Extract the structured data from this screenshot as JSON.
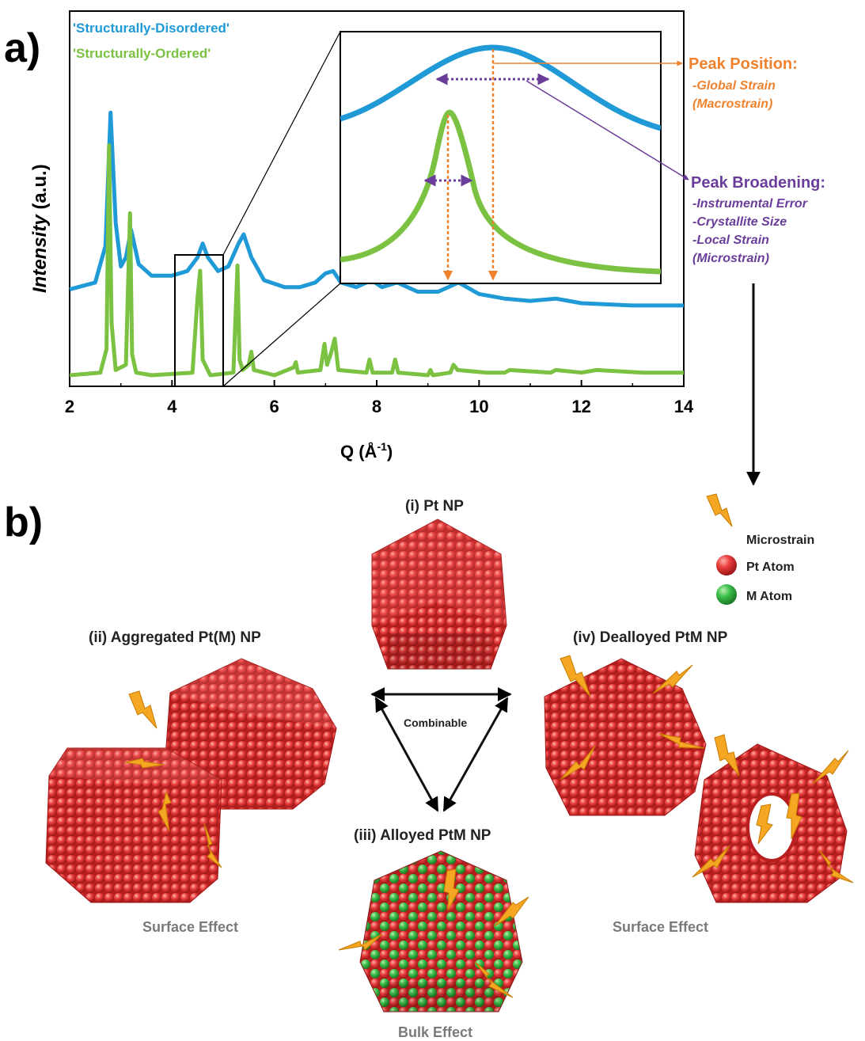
{
  "panel_a": {
    "label": "a)",
    "legend": [
      "'Structurally-Disordered'",
      "'Structurally-Ordered'"
    ],
    "ylabel": {
      "italic": "Intensity",
      "rest": " (a.u.)"
    },
    "xlabel": {
      "main": "Q (Å",
      "sup": "-1",
      "close": ")"
    },
    "xticks": [
      "2",
      "4",
      "6",
      "8",
      "10",
      "12",
      "14"
    ],
    "annotation_position": {
      "title": "Peak Position:",
      "lines": [
        "-Global Strain",
        "(Macrostrain)"
      ]
    },
    "annotation_broadening": {
      "title": "Peak Broadening:",
      "lines": [
        "-Instrumental Error",
        "-Crystallite Size",
        "-Local Strain",
        "(Microstrain)"
      ]
    }
  },
  "panel_b": {
    "label": "b)",
    "np_i": "(i) Pt NP",
    "np_ii": "(ii) Aggregated Pt(M) NP",
    "np_iii": "(iii) Alloyed PtM NP",
    "np_iv": "(iv) Dealloyed PtM NP",
    "combinable": "Combinable",
    "effect_left": "Surface Effect",
    "effect_right": "Surface Effect",
    "effect_bottom": "Bulk Effect",
    "legend": {
      "microstrain": "Microstrain",
      "pt_atom": "Pt Atom",
      "m_atom": "M Atom"
    }
  },
  "colors": {
    "disordered": "#1f9ad6",
    "ordered": "#7cc242",
    "orange": "#f0822d",
    "purple": "#6a3d9a",
    "pt": "#e23b3b",
    "m": "#3cb54a",
    "bolt": "#f5a623"
  },
  "chart_data": {
    "type": "line",
    "xlabel": "Q (Å-1)",
    "ylabel": "Intensity (a.u.)",
    "xlim": [
      2,
      14
    ],
    "x_ticks": [
      2,
      4,
      6,
      8,
      10,
      12,
      14
    ],
    "series": [
      {
        "name": "'Structurally-Disordered'",
        "x": [
          2.0,
          2.5,
          2.7,
          2.8,
          2.9,
          3.0,
          3.1,
          3.2,
          3.35,
          3.6,
          4.0,
          4.3,
          4.5,
          4.6,
          4.7,
          4.9,
          5.1,
          5.3,
          5.4,
          5.55,
          5.8,
          6.2,
          6.5,
          6.8,
          7.0,
          7.15,
          7.3,
          7.6,
          7.9,
          8.1,
          8.4,
          8.8,
          9.2,
          9.6,
          10.0,
          10.5,
          11.0,
          11.5,
          12.0,
          13.0,
          14.0
        ],
        "y": [
          0.16,
          0.19,
          0.35,
          0.93,
          0.45,
          0.26,
          0.3,
          0.42,
          0.27,
          0.22,
          0.22,
          0.24,
          0.3,
          0.36,
          0.3,
          0.24,
          0.26,
          0.36,
          0.4,
          0.3,
          0.2,
          0.17,
          0.17,
          0.19,
          0.23,
          0.24,
          0.19,
          0.17,
          0.2,
          0.17,
          0.19,
          0.15,
          0.15,
          0.19,
          0.14,
          0.12,
          0.11,
          0.12,
          0.1,
          0.09,
          0.09
        ]
      },
      {
        "name": "'Structurally-Ordered'",
        "x": [
          2.0,
          2.6,
          2.72,
          2.77,
          2.82,
          2.9,
          3.1,
          3.18,
          3.22,
          3.3,
          3.6,
          4.4,
          4.5,
          4.55,
          4.6,
          4.75,
          5.2,
          5.28,
          5.32,
          5.38,
          5.5,
          5.55,
          5.6,
          6.0,
          6.38,
          6.42,
          6.46,
          6.9,
          6.98,
          7.03,
          7.1,
          7.18,
          7.25,
          7.8,
          7.86,
          7.92,
          8.3,
          8.36,
          8.42,
          9.0,
          9.05,
          9.1,
          9.44,
          9.5,
          9.58,
          10.15,
          10.5,
          10.6,
          11.4,
          11.5,
          12.0,
          12.3,
          13.2,
          14.0
        ],
        "y": [
          0.0,
          0.01,
          0.1,
          0.88,
          0.2,
          0.02,
          0.04,
          0.62,
          0.08,
          0.01,
          0.0,
          0.01,
          0.3,
          0.4,
          0.06,
          0.0,
          0.01,
          0.42,
          0.06,
          0.02,
          0.04,
          0.09,
          0.02,
          0.0,
          0.03,
          0.05,
          0.01,
          0.02,
          0.12,
          0.04,
          0.08,
          0.14,
          0.02,
          0.01,
          0.06,
          0.01,
          0.01,
          0.06,
          0.01,
          0.0,
          0.02,
          0.0,
          0.01,
          0.04,
          0.02,
          0.01,
          0.01,
          0.02,
          0.01,
          0.02,
          0.01,
          0.02,
          0.01,
          0.01
        ]
      }
    ]
  }
}
